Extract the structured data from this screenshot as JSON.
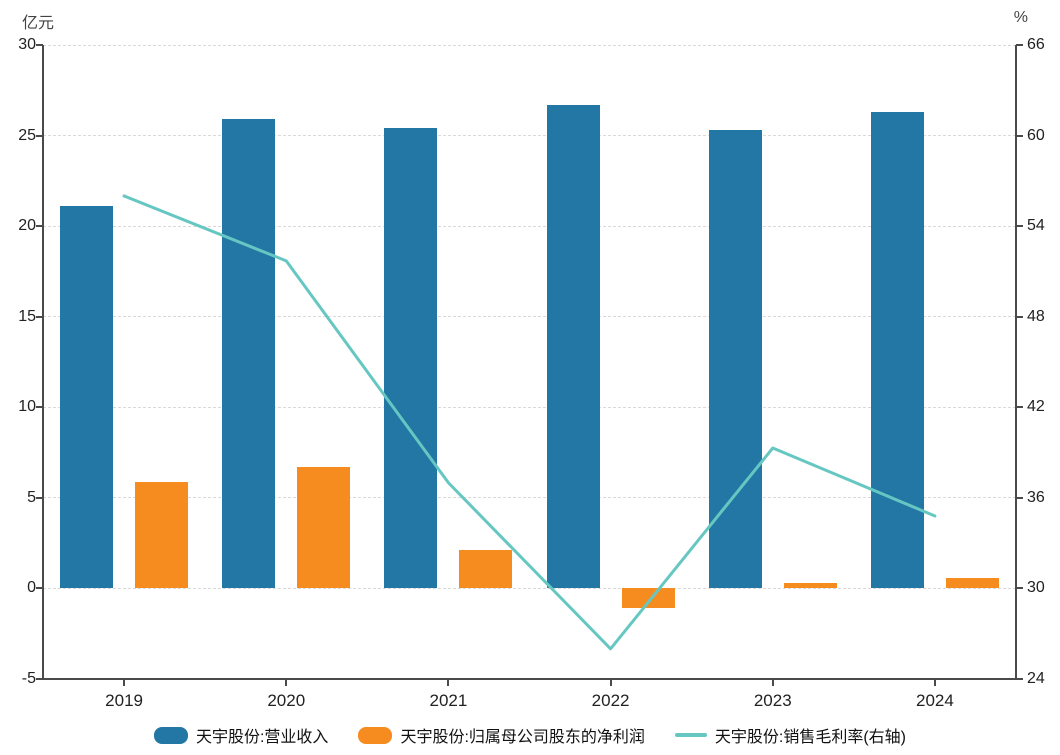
{
  "chart": {
    "left_unit": "亿元",
    "right_unit": "%",
    "colors": {
      "revenue_bar": "#2277a5",
      "profit_bar": "#f68b1f",
      "margin_line": "#66c7c2",
      "axis": "#4a4a4a",
      "grid": "#d9d9d9",
      "text": "#222222"
    }
  },
  "chart_data": {
    "type": "bar",
    "subtype": "grouped-bars-with-line",
    "categories": [
      "2019",
      "2020",
      "2021",
      "2022",
      "2023",
      "2024"
    ],
    "series": [
      {
        "name": "天宇股份:营业收入",
        "type": "bar",
        "axis": "left",
        "color": "#2277a5",
        "values": [
          21.1,
          25.9,
          25.4,
          26.7,
          25.3,
          26.3
        ]
      },
      {
        "name": "天宇股份:归属母公司股东的净利润",
        "type": "bar",
        "axis": "left",
        "color": "#f68b1f",
        "values": [
          5.9,
          6.7,
          2.1,
          -1.1,
          0.3,
          0.6
        ]
      },
      {
        "name": "天宇股份:销售毛利率(右轴)",
        "type": "line",
        "axis": "right",
        "color": "#66c7c2",
        "values": [
          56.0,
          51.7,
          37.0,
          26.0,
          39.3,
          34.8
        ]
      }
    ],
    "left_axis": {
      "label": "亿元",
      "min": -5,
      "max": 30,
      "ticks": [
        30,
        25,
        20,
        15,
        10,
        5,
        0,
        -5
      ]
    },
    "right_axis": {
      "label": "%",
      "min": 24,
      "max": 66,
      "ticks": [
        66,
        60,
        54,
        48,
        42,
        36,
        30,
        24
      ]
    },
    "grid": "horizontal-dashed",
    "legend_position": "bottom-center",
    "title": ""
  }
}
